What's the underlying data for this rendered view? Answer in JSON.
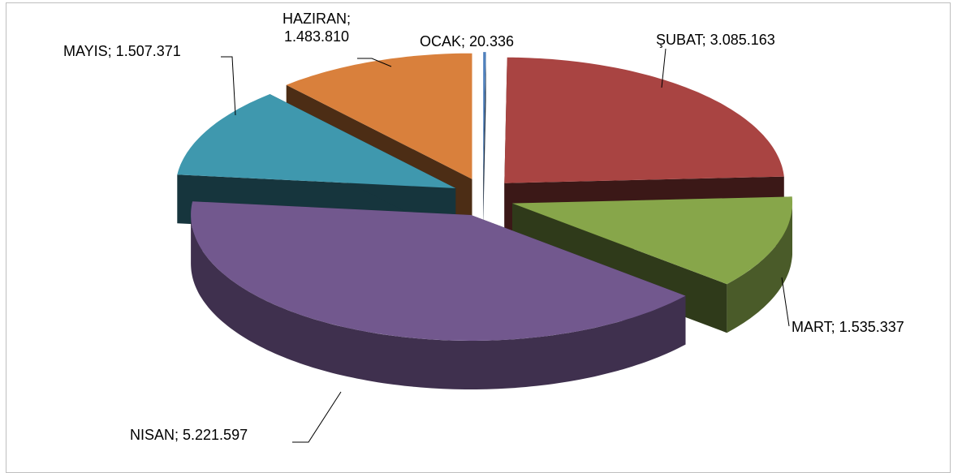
{
  "chart_data": {
    "type": "pie3d",
    "categories": [
      "OCAK",
      "ŞUBAT",
      "MART",
      "NISAN",
      "MAYIS",
      "HAZIRAN"
    ],
    "values": [
      20336,
      3085163,
      1535337,
      5221597,
      1507371,
      1483810
    ],
    "value_labels": [
      "OCAK; 20.336",
      "ŞUBAT; 3.085.163",
      "MART; 1.535.337",
      "NISAN; 5.221.597",
      "MAYIS; 1.507.371",
      "HAZIRAN; 1.483.810"
    ],
    "colors": [
      "#4f81bd",
      "#a94442",
      "#87a64a",
      "#72588e",
      "#3f98ae",
      "#d9803c"
    ]
  }
}
